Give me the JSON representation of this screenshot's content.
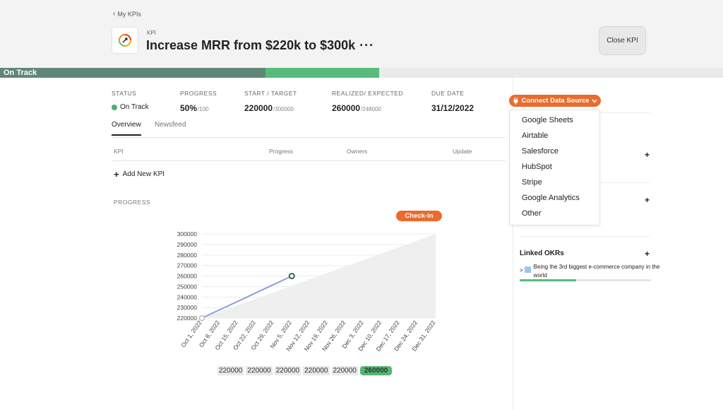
{
  "header": {
    "back_label": "My KPIs",
    "kpi_type_label": "KPI",
    "title": "Increase MRR from $220k to $300k",
    "more_label": "···",
    "close_label": "Close KPI"
  },
  "track": {
    "status_label": "On Track",
    "colors": {
      "status": "#5f8777",
      "fill": "#57bb7c",
      "track": "#e9eaec"
    },
    "progress_fraction": 0.5
  },
  "stats": {
    "status": {
      "label": "STATUS",
      "value": "On Track"
    },
    "progress": {
      "label": "PROGRESS",
      "value": "50%",
      "suffix": "/100"
    },
    "start_target": {
      "label": "START / TARGET",
      "value": "220000",
      "suffix": "/300000"
    },
    "realized": {
      "label": "REALIZED/ EXPECTED",
      "value": "260000",
      "suffix": "/248000"
    },
    "due": {
      "label": "DUE DATE",
      "value": "31/12/2022"
    }
  },
  "tabs": [
    {
      "label": "Overview",
      "active": true
    },
    {
      "label": "Newsfeed",
      "active": false
    }
  ],
  "kpi_table": {
    "headers": [
      "KPI",
      "Progress",
      "Owners",
      "Update"
    ],
    "add_label": "Add New KPI"
  },
  "progress_section": {
    "label": "PROGRESS",
    "checkin_label": "Check-in"
  },
  "chart_data": {
    "type": "line",
    "x": [
      "Oct 1, 2022",
      "Oct 8, 2022",
      "Oct 15, 2022",
      "Oct 22, 2022",
      "Oct 29, 2022",
      "Nov 5, 2022",
      "Nov 12, 2022",
      "Nov 19, 2022",
      "Nov 26, 2022",
      "Dec 3, 2022",
      "Dec 10, 2022",
      "Dec 17, 2022",
      "Dec 24, 2022",
      "Dec 31, 2022"
    ],
    "y_ticks": [
      300000,
      290000,
      280000,
      270000,
      260000,
      250000,
      240000,
      230000,
      220000
    ],
    "ylim": [
      220000,
      300000
    ],
    "series": [
      {
        "points": [
          {
            "x": "Oct 1, 2022",
            "y": 220000
          },
          {
            "x": "Nov 5, 2022",
            "y": 260000
          }
        ],
        "color": "#8c9ddb"
      }
    ],
    "expected": {
      "from": {
        "x": "Oct 1, 2022",
        "y": 220000
      },
      "to": {
        "x": "Dec 31, 2022",
        "y": 300000
      },
      "color": "#efefef"
    },
    "grid": true
  },
  "value_row": [
    {
      "value": "220000",
      "highlight": false
    },
    {
      "value": "220000",
      "highlight": false
    },
    {
      "value": "220000",
      "highlight": false
    },
    {
      "value": "220000",
      "highlight": false
    },
    {
      "value": "220000",
      "highlight": false
    },
    {
      "value": "260000",
      "highlight": true
    }
  ],
  "sidebar": {
    "connect_label": "Connect Data Source",
    "sources": [
      "Google Sheets",
      "Airtable",
      "Salesforce",
      "HubSpot",
      "Stripe",
      "Google Analytics",
      "Other"
    ],
    "linked_okrs_title": "Linked OKRs",
    "okrs": [
      {
        "caret": ">",
        "label": "Being the 3rd biggest e-commerce company in the world",
        "progress_fraction": 0.43
      }
    ]
  }
}
